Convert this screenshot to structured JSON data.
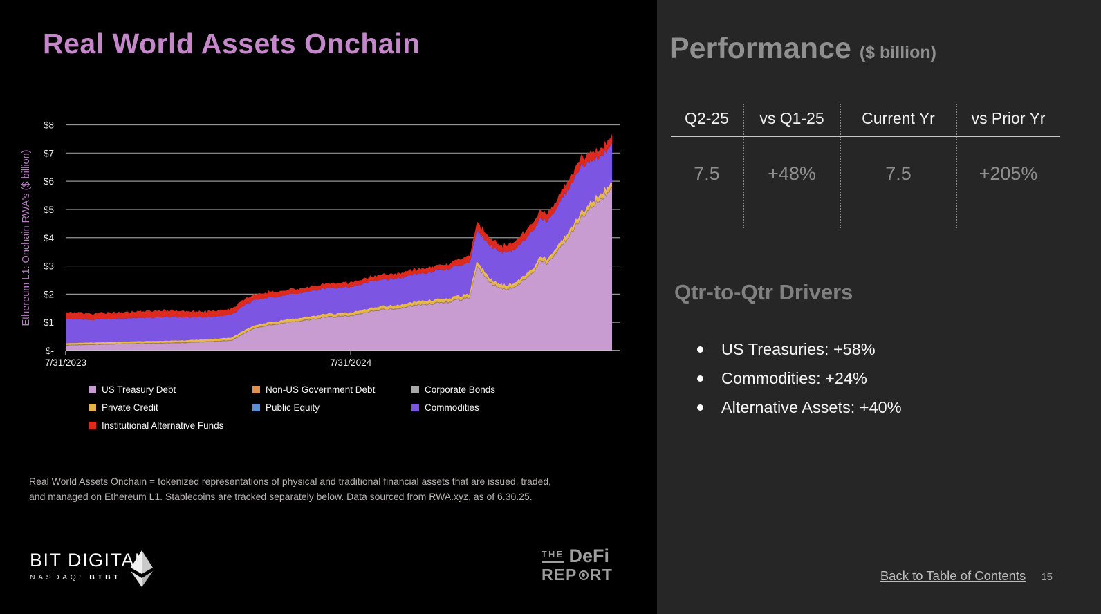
{
  "left_panel": {
    "title": "Real World Assets Onchain",
    "footnote_line1": "Real World Assets Onchain = tokenized representations of physical and traditional financial assets that are issued, traded,",
    "footnote_line2": "and managed on Ethereum L1. Stablecoins are tracked separately below. Data sourced from RWA.xyz, as of 6.30.25."
  },
  "logos": {
    "bit_digital": {
      "name": "BIT DIGITAL",
      "ticker_prefix": "NASDAQ:",
      "ticker": "BTBT"
    },
    "defi_report": {
      "the": "THE",
      "defi": "DeFi",
      "rep": "REP",
      "rt": "RT"
    }
  },
  "chart_data": {
    "type": "area",
    "stacked": true,
    "title": "",
    "xlabel": "",
    "ylabel": "Ethereum L1: Onchain RWA's ($ billion)",
    "ylim": [
      0,
      8
    ],
    "grid": true,
    "legend_position": "bottom",
    "yticks": {
      "labels": [
        "$-",
        "$1",
        "$2",
        "$3",
        "$4",
        "$5",
        "$6",
        "$7",
        "$8"
      ]
    },
    "xticks": [
      {
        "m": 0,
        "label": "7/31/2023"
      },
      {
        "m": 12,
        "label": "7/31/2024"
      }
    ],
    "x_unit": "months since 7/31/2023 (range ends 6/30/2025)",
    "x": [
      0,
      1,
      2,
      3,
      4,
      5,
      6,
      7,
      7.5,
      8,
      9,
      10,
      11,
      12,
      13,
      14,
      15,
      16,
      17,
      17.3,
      18,
      18.5,
      19,
      19.7,
      20,
      20.3,
      21,
      21.7,
      22.4,
      23
    ],
    "series": [
      {
        "name": "US Treasury Debt",
        "color": "#c89bd1",
        "values": [
          0.18,
          0.2,
          0.22,
          0.24,
          0.25,
          0.27,
          0.3,
          0.35,
          0.6,
          0.8,
          0.95,
          1.05,
          1.18,
          1.22,
          1.4,
          1.5,
          1.62,
          1.7,
          1.85,
          2.95,
          2.3,
          2.15,
          2.3,
          2.8,
          3.2,
          3.05,
          3.8,
          4.7,
          5.3,
          5.65
        ]
      },
      {
        "name": "Non-US Government Debt",
        "color": "#e0914f",
        "values": [
          0.01,
          0.01,
          0.01,
          0.01,
          0.01,
          0.01,
          0.01,
          0.01,
          0.01,
          0.01,
          0.01,
          0.01,
          0.01,
          0.01,
          0.01,
          0.01,
          0.01,
          0.01,
          0.01,
          0.01,
          0.01,
          0.01,
          0.01,
          0.01,
          0.01,
          0.01,
          0.01,
          0.01,
          0.01,
          0.01
        ]
      },
      {
        "name": "Corporate Bonds",
        "color": "#a8a8a8",
        "values": [
          0.01,
          0.01,
          0.01,
          0.01,
          0.01,
          0.01,
          0.01,
          0.01,
          0.01,
          0.01,
          0.01,
          0.01,
          0.01,
          0.01,
          0.01,
          0.01,
          0.01,
          0.01,
          0.01,
          0.01,
          0.01,
          0.01,
          0.01,
          0.01,
          0.01,
          0.01,
          0.01,
          0.01,
          0.01,
          0.01
        ]
      },
      {
        "name": "Private Credit",
        "color": "#e3b54a",
        "values": [
          0.04,
          0.04,
          0.04,
          0.05,
          0.05,
          0.05,
          0.06,
          0.07,
          0.07,
          0.07,
          0.07,
          0.08,
          0.08,
          0.08,
          0.09,
          0.09,
          0.09,
          0.1,
          0.1,
          0.1,
          0.1,
          0.1,
          0.11,
          0.11,
          0.11,
          0.12,
          0.12,
          0.13,
          0.14,
          0.14
        ]
      },
      {
        "name": "Public Equity",
        "color": "#5b8fd4",
        "values": [
          0.01,
          0.01,
          0.01,
          0.01,
          0.01,
          0.01,
          0.01,
          0.01,
          0.01,
          0.01,
          0.01,
          0.01,
          0.01,
          0.01,
          0.01,
          0.01,
          0.01,
          0.01,
          0.01,
          0.01,
          0.01,
          0.01,
          0.01,
          0.01,
          0.01,
          0.01,
          0.01,
          0.01,
          0.01,
          0.01
        ]
      },
      {
        "name": "Commodities",
        "color": "#7d55e3",
        "values": [
          0.85,
          0.82,
          0.84,
          0.83,
          0.85,
          0.83,
          0.8,
          0.82,
          0.9,
          0.9,
          0.88,
          0.9,
          0.92,
          0.93,
          0.95,
          0.97,
          1.0,
          1.05,
          1.12,
          1.15,
          1.2,
          1.18,
          1.22,
          1.35,
          1.38,
          1.33,
          1.55,
          1.68,
          1.38,
          1.4
        ]
      },
      {
        "name": "Institutional Alternative Funds",
        "color": "#dd2a1c",
        "values": [
          0.25,
          0.22,
          0.22,
          0.23,
          0.24,
          0.22,
          0.2,
          0.21,
          0.22,
          0.2,
          0.18,
          0.17,
          0.17,
          0.17,
          0.17,
          0.18,
          0.18,
          0.19,
          0.26,
          0.3,
          0.27,
          0.24,
          0.28,
          0.3,
          0.28,
          0.27,
          0.3,
          0.32,
          0.3,
          0.28
        ]
      }
    ]
  },
  "performance": {
    "title": "Performance",
    "subtitle": "($ billion)",
    "columns": [
      "Q2-25",
      "vs Q1-25",
      "Current Yr",
      "vs Prior Yr"
    ],
    "values": [
      "7.5",
      "+48%",
      "7.5",
      "+205%"
    ]
  },
  "drivers": {
    "title": "Qtr-to-Qtr Drivers",
    "items": [
      "US Treasuries: +58%",
      "Commodities: +24%",
      "Alternative Assets: +40%"
    ]
  },
  "footer": {
    "link": "Back to Table of Contents",
    "page": "15"
  }
}
